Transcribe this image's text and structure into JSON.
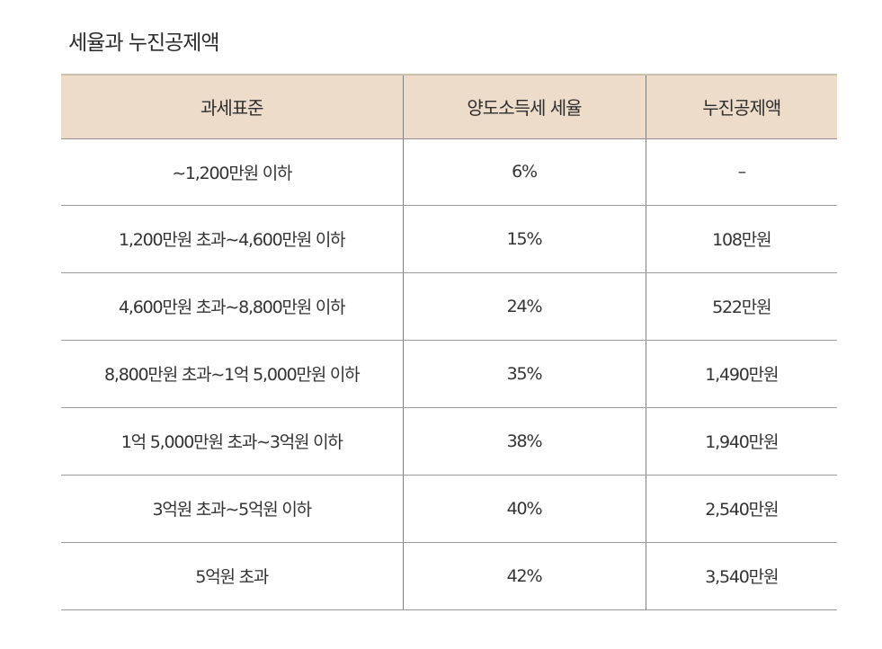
{
  "title": "세율과 누진공제액",
  "table": {
    "headers": [
      "과세표준",
      "양도소득세 세율",
      "누진공제액"
    ],
    "rows": [
      [
        "∼1,200만원 이하",
        "6%",
        "–"
      ],
      [
        "1,200만원 초과∼4,600만원 이하",
        "15%",
        "108만원"
      ],
      [
        "4,600만원 초과∼8,800만원 이하",
        "24%",
        "522만원"
      ],
      [
        "8,800만원 초과∼1억 5,000만원 이하",
        "35%",
        "1,490만원"
      ],
      [
        "1억 5,000만원 초과∼3억원 이하",
        "38%",
        "1,940만원"
      ],
      [
        "3억원 초과∼5억원 이하",
        "40%",
        "2,540만원"
      ],
      [
        "5억원 초과",
        "42%",
        "3,540만원"
      ]
    ]
  },
  "colors": {
    "header_background": "#eddcca",
    "text": "#2b2b2b",
    "rule": "#9a9a9a"
  }
}
